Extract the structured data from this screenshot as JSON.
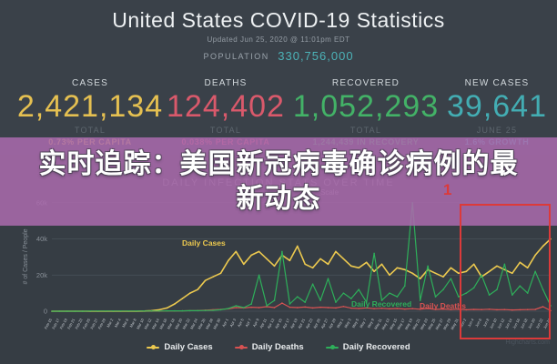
{
  "header": {
    "title": "United States COVID-19 Statistics",
    "updated": "Updated Jun 25, 2020 @ 11:01pm EDT",
    "population_label": "POPULATION",
    "population_value": "330,756,000"
  },
  "stats": [
    {
      "label": "CASES",
      "value": "2,421,134",
      "sub1": "TOTAL",
      "sub2": "0.73% PER CAPITA",
      "color": "#e5c051"
    },
    {
      "label": "DEATHS",
      "value": "124,402",
      "sub1": "TOTAL",
      "sub2": "0.038% PER CAPITA",
      "color": "#d9596b"
    },
    {
      "label": "RECOVERED",
      "value": "1,052,293",
      "sub1": "TOTAL",
      "sub2": "1,244,439 IN RECOVERY",
      "color": "#43b267"
    },
    {
      "label": "NEW CASES",
      "value": "39,641",
      "sub1": "JUNE 25",
      "sub2": "1.6% GROWTH",
      "color": "#43adb3"
    }
  ],
  "section": {
    "title": "DAILY INFECTION STATS OVER TIME",
    "scale_label": "Scale"
  },
  "overlay": {
    "line1": "实时追踪：美国新冠病毒确诊病例的最",
    "line2": "新动态",
    "bg_color": "#ac6bae"
  },
  "annotation": {
    "label": "1",
    "color": "#dc3a3a"
  },
  "chart_data": {
    "type": "line",
    "title": "DAILY INFECTION STATS OVER TIME",
    "xlabel": "",
    "ylabel": "# of Cases / People",
    "yticks": [
      "0",
      "20k",
      "40k",
      "60k"
    ],
    "ylim_k": [
      0,
      60
    ],
    "grid": true,
    "legend_position": "bottom",
    "credit": "Highcharts.com",
    "x": [
      "Feb 15",
      "Feb 17",
      "Feb 19",
      "Feb 21",
      "Feb 23",
      "Feb 25",
      "Feb 27",
      "Feb 29",
      "Mar 2",
      "Mar 4",
      "Mar 6",
      "Mar 8",
      "Mar 10",
      "Mar 12",
      "Mar 14",
      "Mar 16",
      "Mar 18",
      "Mar 20",
      "Mar 22",
      "Mar 24",
      "Mar 26",
      "Mar 28",
      "Mar 30",
      "Apr 1",
      "Apr 3",
      "Apr 5",
      "Apr 7",
      "Apr 9",
      "Apr 11",
      "Apr 13",
      "Apr 15",
      "Apr 17",
      "Apr 19",
      "Apr 21",
      "Apr 23",
      "Apr 25",
      "Apr 27",
      "Apr 29",
      "May 1",
      "May 3",
      "May 5",
      "May 7",
      "May 9",
      "May 11",
      "May 13",
      "May 15",
      "May 17",
      "May 19",
      "May 21",
      "May 23",
      "May 25",
      "May 27",
      "May 29",
      "May 31",
      "Jun 2",
      "Jun 4",
      "Jun 6",
      "Jun 8",
      "Jun 10",
      "Jun 12",
      "Jun 14",
      "Jun 16",
      "Jun 18",
      "Jun 20",
      "Jun 22",
      "Jun 24"
    ],
    "series": [
      {
        "name": "Daily Cases",
        "color": "#ecc94f",
        "values_k": [
          0,
          0,
          0,
          0,
          0,
          0,
          0,
          0,
          0,
          0,
          0,
          0,
          0.1,
          0.3,
          0.8,
          1.8,
          4,
          7,
          10,
          12,
          17,
          19,
          21,
          28,
          33,
          26,
          31,
          33,
          29,
          25,
          31,
          28,
          36,
          26,
          24,
          29,
          26,
          33,
          29,
          25,
          24,
          27,
          22,
          26,
          20,
          24,
          23,
          21,
          18,
          23,
          21,
          19,
          24,
          21,
          22,
          26,
          19,
          22,
          25,
          23,
          21,
          27,
          24,
          31,
          36,
          40
        ]
      },
      {
        "name": "Daily Deaths",
        "color": "#d85252",
        "values_k": [
          0,
          0,
          0,
          0,
          0,
          0,
          0,
          0,
          0,
          0,
          0,
          0,
          0,
          0,
          0,
          0.1,
          0.1,
          0.2,
          0.3,
          0.4,
          0.6,
          0.8,
          1.0,
          1.3,
          2.0,
          1.8,
          2.2,
          2.0,
          2.5,
          2.0,
          4.5,
          2.2,
          2.0,
          2.3,
          1.8,
          2.2,
          2.0,
          1.8,
          2.6,
          1.7,
          1.5,
          1.8,
          1.4,
          1.6,
          1.3,
          1.5,
          1.2,
          1.4,
          1.1,
          1.5,
          1.0,
          1.2,
          0.9,
          1.1,
          0.8,
          1.0,
          0.9,
          1.1,
          0.8,
          0.9,
          0.7,
          0.8,
          0.9,
          1.0,
          2.5,
          0.3
        ]
      },
      {
        "name": "Daily Recovered",
        "color": "#2eaf5a",
        "values_k": [
          0,
          0,
          0,
          0,
          0,
          0.1,
          0.1,
          0.1,
          0.1,
          0.1,
          0.1,
          0.1,
          0.1,
          0.1,
          0.1,
          0.2,
          0.2,
          0.2,
          0.3,
          0.3,
          0.4,
          0.5,
          0.8,
          1.5,
          3,
          2,
          4,
          20,
          3,
          6,
          33,
          4,
          8,
          5,
          15,
          6,
          18,
          5,
          10,
          7,
          12,
          5,
          32,
          6,
          10,
          8,
          14,
          60,
          6,
          25,
          8,
          12,
          18,
          8,
          10,
          13,
          20,
          9,
          12,
          26,
          9,
          14,
          10,
          22,
          12,
          3
        ]
      }
    ],
    "inline_labels": [
      {
        "text": "Daily Cases",
        "color": "#ecc94f"
      },
      {
        "text": "Daily Recovered",
        "color": "#2eaf5a"
      },
      {
        "text": "Daily Deaths",
        "color": "#d85252"
      }
    ]
  },
  "colors": {
    "background": "#3a4149",
    "chart_panel": "#363d44",
    "gridline": "#4a525a",
    "annotation_red": "#dc3a3a"
  }
}
